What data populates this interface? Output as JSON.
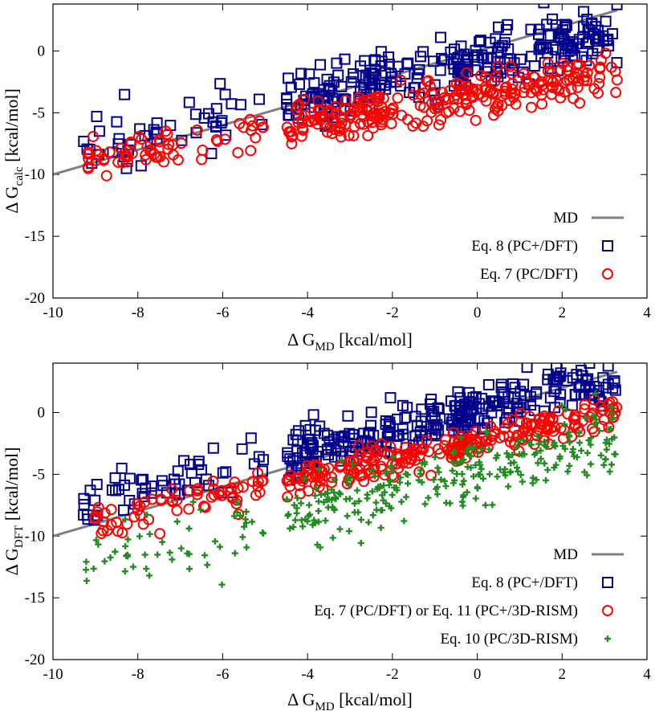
{
  "chart_data": [
    {
      "type": "scatter",
      "ylabel_main": "Δ G",
      "ylabel_sub": "calc",
      "ylabel_unit": " [kcal/mol]",
      "xlabel_main": "Δ G",
      "xlabel_sub": "MD",
      "xlabel_unit": " [kcal/mol]",
      "xlim": [
        -10,
        4
      ],
      "ylim": [
        -20,
        3.8
      ],
      "x_ticks": [
        -10,
        -8,
        -6,
        -4,
        -2,
        0,
        2,
        4
      ],
      "x_tick_labels": [
        "-10",
        "-8",
        "-6",
        "-4",
        "-2",
        "0",
        "2",
        "4"
      ],
      "y_ticks": [
        -20,
        -15,
        -10,
        -5,
        0
      ],
      "y_tick_labels": [
        "-20",
        "-15",
        "-10",
        "-5",
        "0"
      ],
      "legend_position": "bottom-right",
      "series": [
        {
          "name": "MD",
          "type": "line",
          "color": "#808080",
          "x": [
            -10,
            3.3
          ],
          "y": [
            -10,
            3.3
          ]
        },
        {
          "name": "Eq. 8 (PC+/DFT)",
          "marker": "square",
          "color": "#00008b",
          "x_range": [
            -9.3,
            3.3
          ],
          "trend": {
            "slope": 0.75,
            "intercept": -0.8
          },
          "spread": 1.2,
          "count": 310
        },
        {
          "name": "Eq. 7 (PC/DFT)",
          "marker": "circle",
          "color": "#ff0000",
          "x_range": [
            -9.3,
            3.3
          ],
          "trend": {
            "slope": 0.58,
            "intercept": -3.6
          },
          "spread": 0.9,
          "count": 330
        }
      ]
    },
    {
      "type": "scatter",
      "ylabel_main": "Δ G",
      "ylabel_sub": "DFT",
      "ylabel_unit": " [kcal/mol]",
      "xlabel_main": "Δ G",
      "xlabel_sub": "MD",
      "xlabel_unit": " [kcal/mol]",
      "xlim": [
        -10,
        4
      ],
      "ylim": [
        -20,
        4
      ],
      "x_ticks": [
        -10,
        -8,
        -6,
        -4,
        -2,
        0,
        2,
        4
      ],
      "x_tick_labels": [
        "-10",
        "-8",
        "-6",
        "-4",
        "-2",
        "0",
        "2",
        "4"
      ],
      "y_ticks": [
        -20,
        -15,
        -10,
        -5,
        0
      ],
      "y_tick_labels": [
        "-20",
        "-15",
        "-10",
        "-5",
        "0"
      ],
      "legend_position": "bottom-right",
      "series": [
        {
          "name": "MD",
          "type": "line",
          "color": "#808080",
          "x": [
            -10,
            3.3
          ],
          "y": [
            -10,
            3.3
          ]
        },
        {
          "name": "Eq. 8 (PC+/DFT)",
          "marker": "square",
          "color": "#00008b",
          "x_range": [
            -9.3,
            3.3
          ],
          "trend": {
            "slope": 0.82,
            "intercept": 0.2
          },
          "spread": 1.0,
          "count": 330
        },
        {
          "name": "Eq. 7 (PC/DFT) or Eq. 11 (PC+/3D-RISM)",
          "marker": "circle",
          "color": "#ff0000",
          "x_range": [
            -9.3,
            3.3
          ],
          "trend": {
            "slope": 0.73,
            "intercept": -2.3
          },
          "spread": 0.7,
          "count": 330
        },
        {
          "name": "Eq. 10 (PC/3D-RISM)",
          "marker": "plus",
          "color": "#228b22",
          "x_range": [
            -9.3,
            3.3
          ],
          "trend": {
            "slope": 0.84,
            "intercept": -4.6
          },
          "spread": 1.3,
          "count": 340
        }
      ]
    }
  ]
}
